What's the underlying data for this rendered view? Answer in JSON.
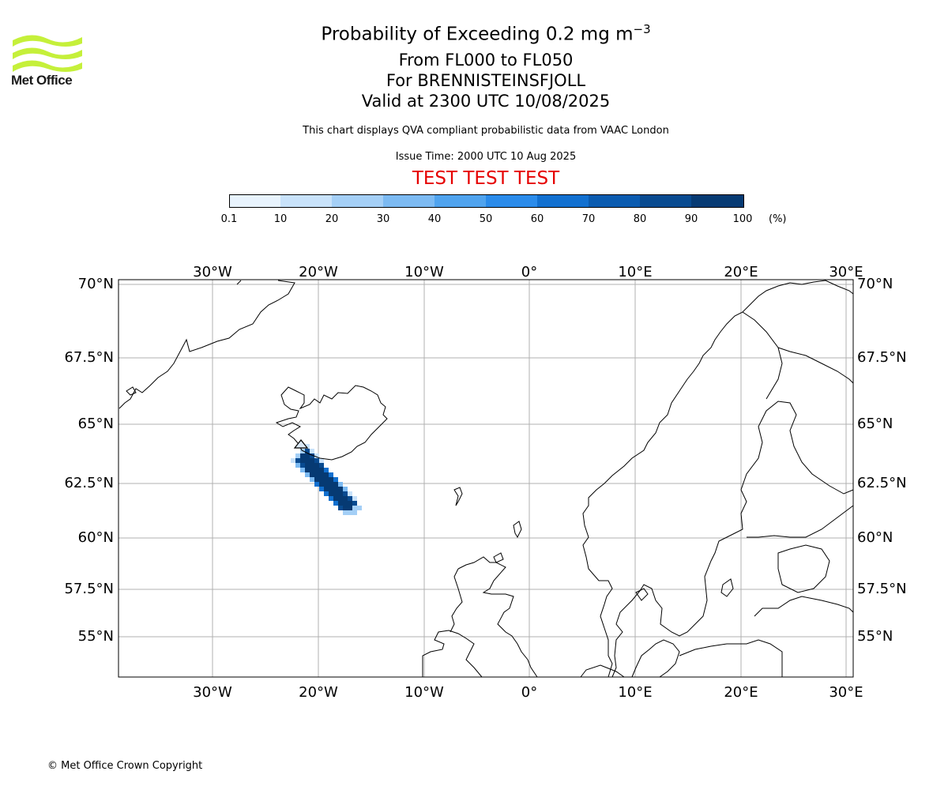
{
  "logo": {
    "name": "Met Office"
  },
  "title": {
    "main": "Probability of Exceeding 0.2 mg m",
    "exponent": "−3",
    "levels": "From FL000 to FL050",
    "volcano": "For BRENNISTEINSFJOLL",
    "valid": "Valid at 2300 UTC 10/08/2025",
    "note": "This chart displays QVA compliant probabilistic data from VAAC London",
    "issue": "Issue Time: 2000 UTC 10 Aug 2025",
    "test_banner": "TEST TEST TEST"
  },
  "colorbar": {
    "ticks": [
      "0.1",
      "10",
      "20",
      "30",
      "40",
      "50",
      "60",
      "70",
      "80",
      "90",
      "100"
    ],
    "unit": "(%)",
    "colors": [
      "#e8f3fd",
      "#c8e2fa",
      "#a4cff6",
      "#7cbaf2",
      "#4fa3ee",
      "#2a8bea",
      "#1170d0",
      "#0a5bb0",
      "#084a90",
      "#063a73",
      "#042a55"
    ]
  },
  "map": {
    "lon_labels": [
      "30°W",
      "20°W",
      "10°W",
      "0°",
      "10°E",
      "20°E",
      "30°E"
    ],
    "lat_labels": [
      "70°N",
      "67.5°N",
      "65°N",
      "62.5°N",
      "60°N",
      "57.5°N",
      "55°N"
    ],
    "grid_color": "#b0b0b0",
    "plume_peak_probability_percent": 100
  },
  "copyright": "© Met Office Crown Copyright"
}
